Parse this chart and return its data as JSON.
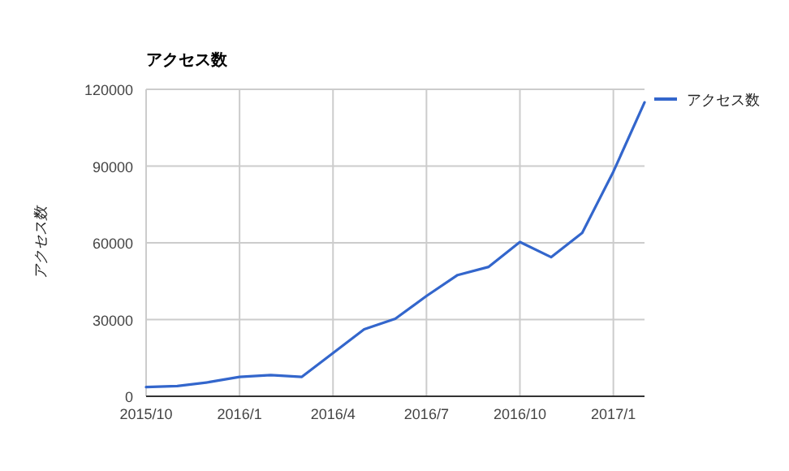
{
  "chart_data": {
    "type": "line",
    "title": "アクセス数",
    "ylabel": "アクセス数",
    "x": [
      "2015-10",
      "2015-11",
      "2015-12",
      "2016-01",
      "2016-02",
      "2016-03",
      "2016-04",
      "2016-05",
      "2016-06",
      "2016-07",
      "2016-08",
      "2016-09",
      "2016-10",
      "2016-11",
      "2016-12",
      "2017-01",
      "2017-02"
    ],
    "series": [
      {
        "name": "アクセス数",
        "color": "#3366cc",
        "values": [
          3600,
          4000,
          5500,
          7600,
          8300,
          7600,
          16900,
          26200,
          30300,
          39200,
          47400,
          50600,
          60300,
          54400,
          63900,
          87800,
          114900
        ]
      }
    ],
    "xlim": [
      "2015-10",
      "2017-02"
    ],
    "xticks": [
      {
        "value": "2015-10",
        "label": "2015/10"
      },
      {
        "value": "2016-01",
        "label": "2016/1"
      },
      {
        "value": "2016-04",
        "label": "2016/4"
      },
      {
        "value": "2016-07",
        "label": "2016/7"
      },
      {
        "value": "2016-10",
        "label": "2016/10"
      },
      {
        "value": "2017-01",
        "label": "2017/1"
      }
    ],
    "ylim": [
      0,
      120000
    ],
    "yticks": [
      0,
      30000,
      60000,
      90000,
      120000
    ],
    "grid": true,
    "legend": "right",
    "marker": "none",
    "line_style": "solid"
  }
}
